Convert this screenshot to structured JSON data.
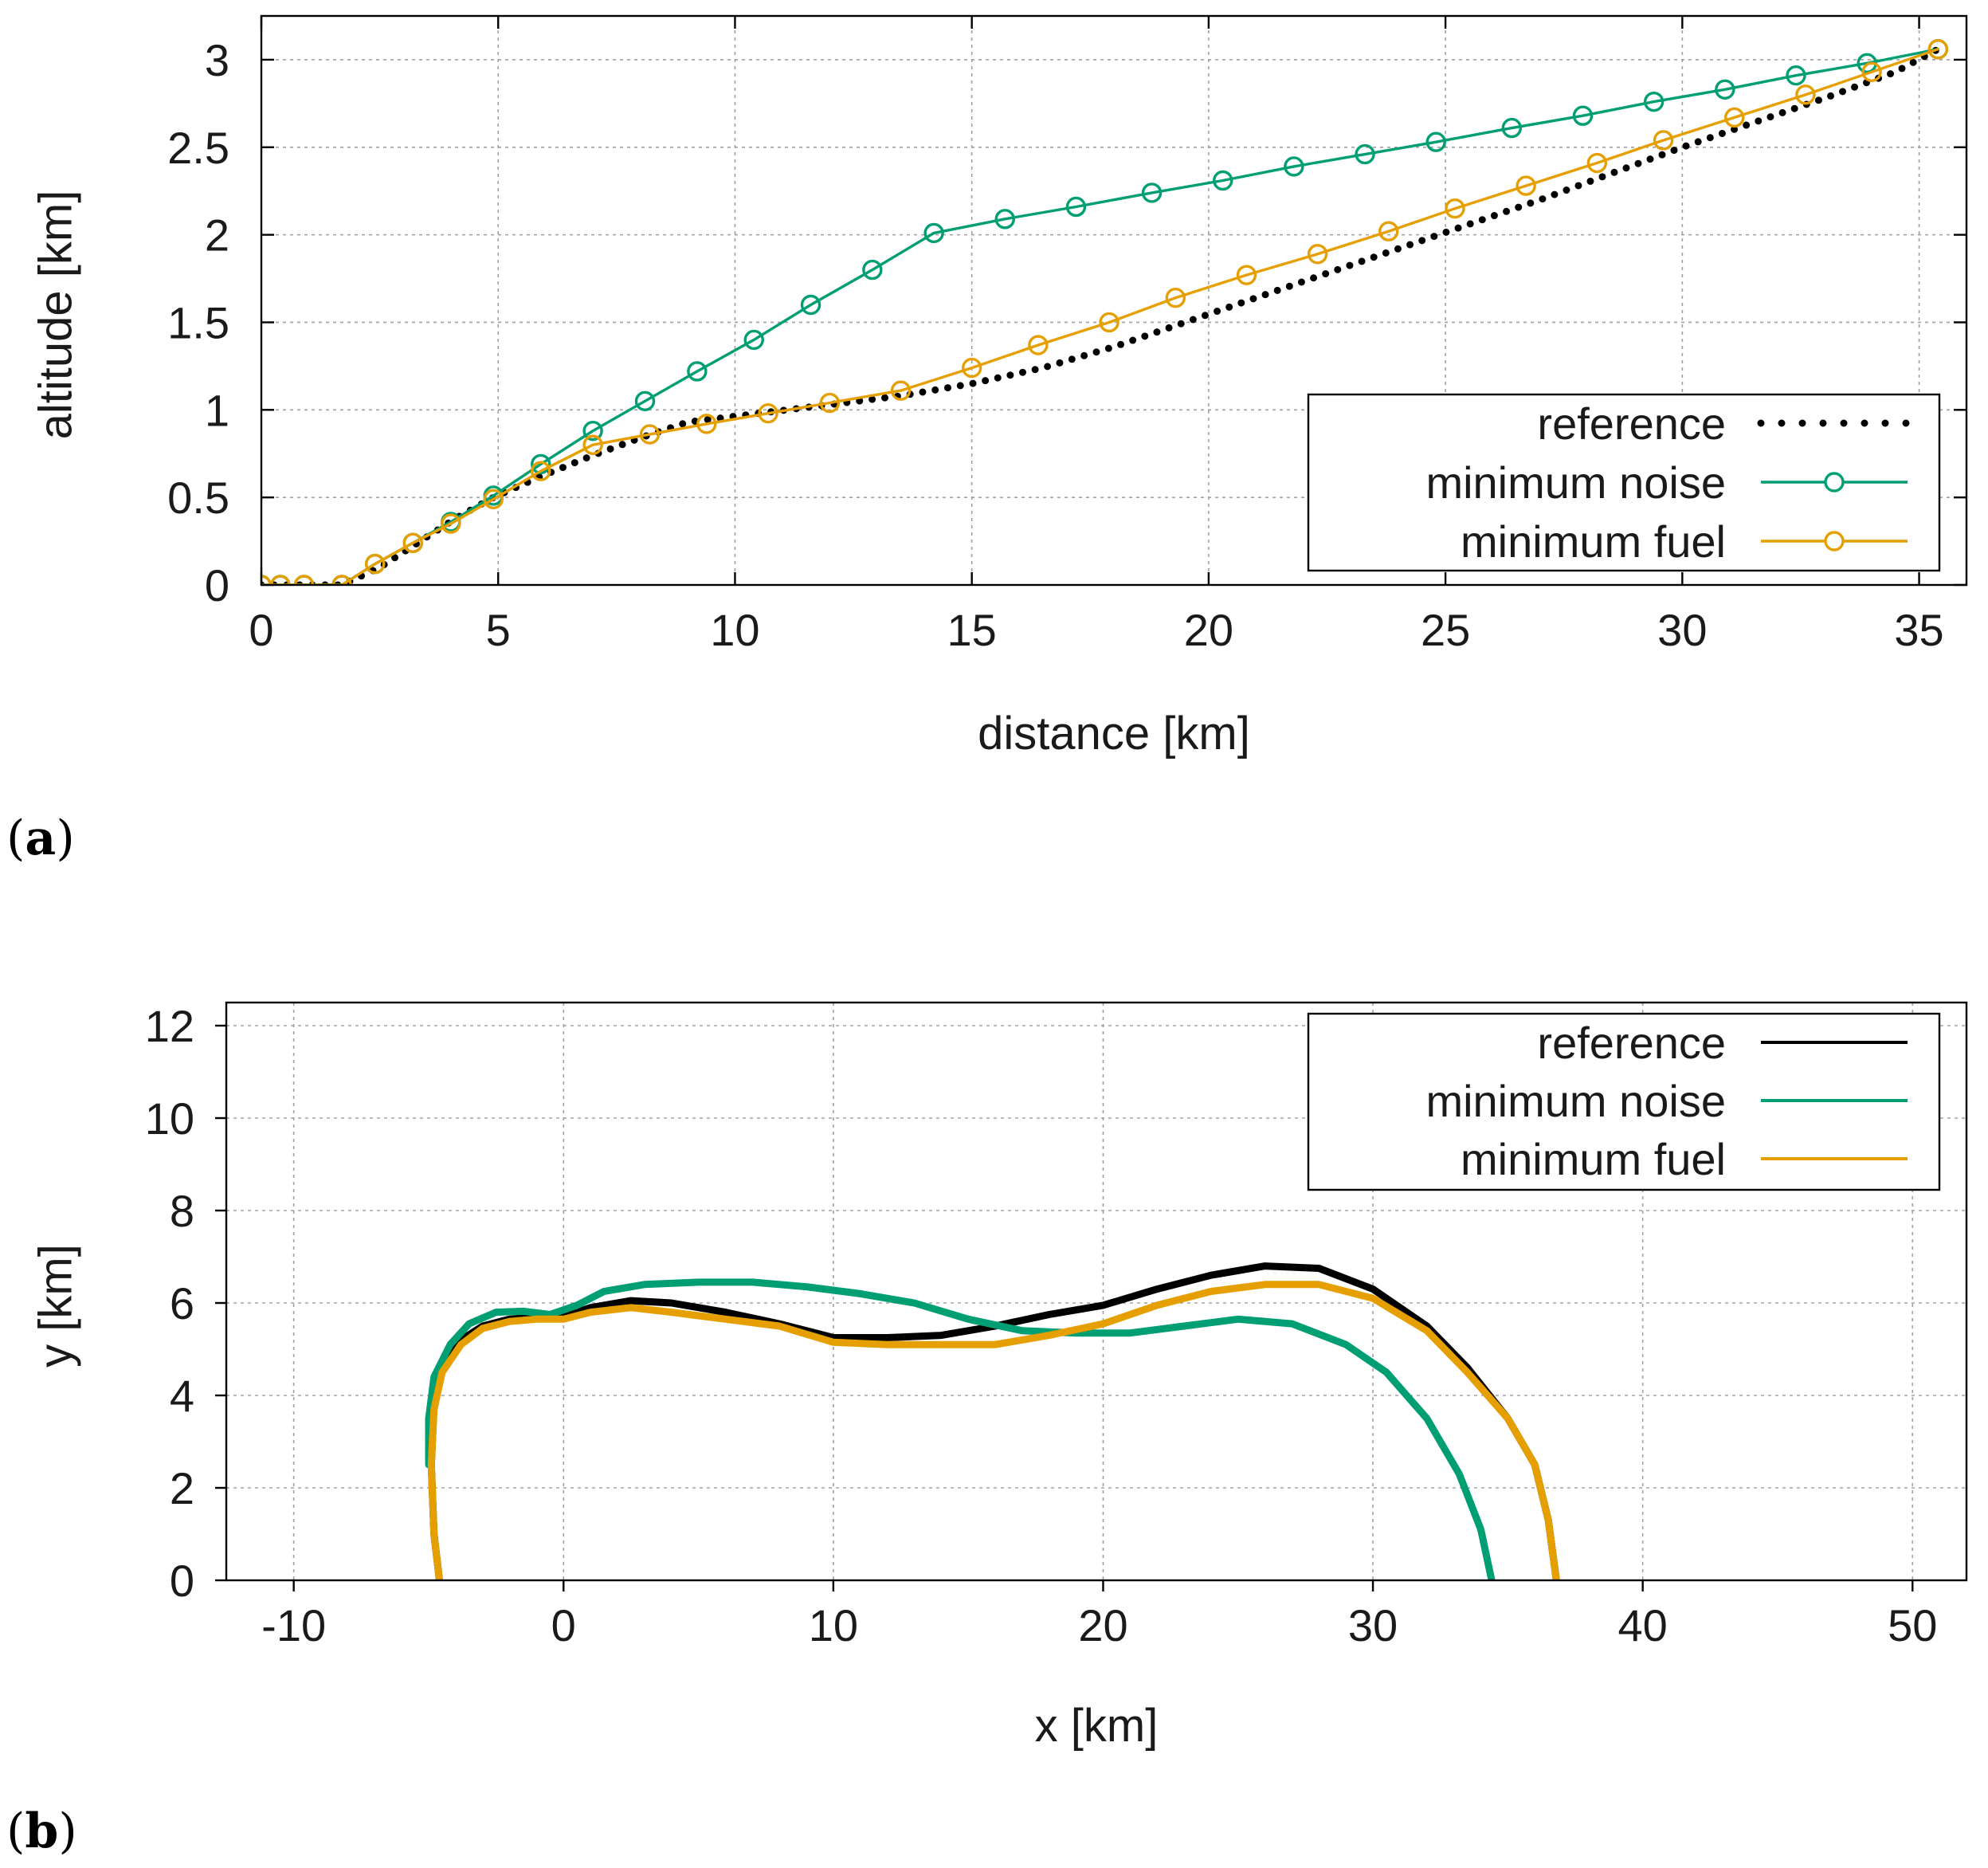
{
  "colors": {
    "reference": "#000000",
    "minimum_noise": "#009e73",
    "minimum_fuel": "#e69f00"
  },
  "chart_data": [
    {
      "id": "a",
      "type": "line",
      "panel_label": "a",
      "title": "",
      "xlabel": "distance [km]",
      "ylabel": "altitude [km]",
      "xlim": [
        0,
        36
      ],
      "ylim": [
        0,
        3.25
      ],
      "xticks": [
        0,
        5,
        10,
        15,
        20,
        25,
        30,
        35
      ],
      "yticks": [
        0,
        0.5,
        1,
        1.5,
        2,
        2.5,
        3
      ],
      "xtick_labels": [
        "0",
        "5",
        "10",
        "15",
        "20",
        "25",
        "30",
        "35"
      ],
      "ytick_labels": [
        "0",
        "0.5",
        "1",
        "1.5",
        "2",
        "2.5",
        "3"
      ],
      "grid": true,
      "legend_position": "bottom-right",
      "series": [
        {
          "name": "reference",
          "style": "dotted",
          "color_key": "reference",
          "x": [
            0,
            1.7,
            2.5,
            3.3,
            4.1,
            4.9,
            5.9,
            7.0,
            8.0,
            9.0,
            10.5,
            12.0,
            13.5,
            15.0,
            16.5,
            18.0,
            19.5,
            21.0,
            22.5,
            24.0,
            25.5,
            27.0,
            28.5,
            30.0,
            31.5,
            33.0,
            34.5,
            35.4
          ],
          "y": [
            0,
            0,
            0.1,
            0.24,
            0.38,
            0.5,
            0.62,
            0.74,
            0.84,
            0.93,
            0.98,
            1.03,
            1.08,
            1.15,
            1.24,
            1.36,
            1.5,
            1.64,
            1.78,
            1.92,
            2.06,
            2.2,
            2.35,
            2.5,
            2.64,
            2.78,
            2.93,
            3.06
          ]
        },
        {
          "name": "minimum noise",
          "style": "line-circle",
          "color_key": "minimum_noise",
          "x": [
            0,
            0.4,
            0.9,
            1.7,
            2.4,
            3.2,
            4.0,
            4.9,
            5.9,
            7.0,
            8.1,
            9.2,
            10.4,
            11.6,
            12.9,
            14.2,
            15.7,
            17.2,
            18.8,
            20.3,
            21.8,
            23.3,
            24.8,
            26.4,
            27.9,
            29.4,
            30.9,
            32.4,
            33.9,
            35.4
          ],
          "y": [
            0,
            0,
            0,
            0,
            0.12,
            0.24,
            0.36,
            0.51,
            0.69,
            0.88,
            1.05,
            1.22,
            1.4,
            1.6,
            1.8,
            2.01,
            2.09,
            2.16,
            2.24,
            2.31,
            2.39,
            2.46,
            2.53,
            2.61,
            2.68,
            2.76,
            2.83,
            2.91,
            2.98,
            3.06
          ]
        },
        {
          "name": "minimum fuel",
          "style": "line-circle",
          "color_key": "minimum_fuel",
          "x": [
            0,
            0.4,
            0.9,
            1.7,
            2.4,
            3.2,
            4.0,
            4.9,
            5.9,
            7.0,
            8.2,
            9.4,
            10.7,
            12.0,
            13.5,
            15.0,
            16.4,
            17.9,
            19.3,
            20.8,
            22.3,
            23.8,
            25.2,
            26.7,
            28.2,
            29.6,
            31.1,
            32.6,
            34.0,
            35.4
          ],
          "y": [
            0,
            0,
            0,
            0,
            0.12,
            0.24,
            0.35,
            0.49,
            0.65,
            0.8,
            0.86,
            0.92,
            0.98,
            1.04,
            1.11,
            1.24,
            1.37,
            1.5,
            1.64,
            1.77,
            1.89,
            2.02,
            2.15,
            2.28,
            2.41,
            2.54,
            2.67,
            2.8,
            2.93,
            3.06
          ]
        }
      ]
    },
    {
      "id": "b",
      "type": "line",
      "panel_label": "b",
      "title": "",
      "xlabel": "x [km]",
      "ylabel": "y [km]",
      "xlim": [
        -12.5,
        52
      ],
      "ylim": [
        0,
        12.5
      ],
      "xticks": [
        -10,
        0,
        10,
        20,
        30,
        40,
        50
      ],
      "yticks": [
        0,
        2,
        4,
        6,
        8,
        10,
        12
      ],
      "xtick_labels": [
        "-10",
        "0",
        "10",
        "20",
        "30",
        "40",
        "50"
      ],
      "ytick_labels": [
        "0",
        "2",
        "4",
        "6",
        "8",
        "10",
        "12"
      ],
      "grid": true,
      "legend_position": "top-right",
      "series": [
        {
          "name": "reference",
          "style": "line",
          "color_key": "reference",
          "x": [
            -4.6,
            -4.8,
            -4.9,
            -4.8,
            -4.5,
            -3.8,
            -3.0,
            -2.0,
            -1.0,
            0,
            1.0,
            2.5,
            4.0,
            6.0,
            8.0,
            10.0,
            12.0,
            14.0,
            16.0,
            18.0,
            20.0,
            22.0,
            24.0,
            26.0,
            28.0,
            30.0,
            32.0,
            33.5,
            35.0,
            36.0,
            36.5,
            36.8
          ],
          "y": [
            0,
            1.0,
            2.5,
            3.8,
            4.6,
            5.2,
            5.5,
            5.65,
            5.7,
            5.7,
            5.9,
            6.05,
            6.0,
            5.8,
            5.55,
            5.25,
            5.25,
            5.3,
            5.5,
            5.75,
            5.95,
            6.3,
            6.6,
            6.8,
            6.75,
            6.3,
            5.5,
            4.6,
            3.5,
            2.5,
            1.3,
            0
          ]
        },
        {
          "name": "minimum noise",
          "style": "line",
          "color_key": "minimum_noise",
          "x": [
            -5.0,
            -5.0,
            -4.8,
            -4.2,
            -3.5,
            -2.5,
            -1.5,
            -0.5,
            0.5,
            1.5,
            3.0,
            5.0,
            7.0,
            9.0,
            11.0,
            13.0,
            15.0,
            17.0,
            19.0,
            21.0,
            23.0,
            25.0,
            27.0,
            29.0,
            30.5,
            32.0,
            33.2,
            34.0,
            34.4
          ],
          "y": [
            2.5,
            3.5,
            4.4,
            5.1,
            5.55,
            5.8,
            5.82,
            5.75,
            5.95,
            6.25,
            6.4,
            6.45,
            6.45,
            6.35,
            6.2,
            6.0,
            5.65,
            5.4,
            5.35,
            5.35,
            5.5,
            5.65,
            5.55,
            5.1,
            4.5,
            3.5,
            2.3,
            1.1,
            0
          ]
        },
        {
          "name": "minimum fuel",
          "style": "line",
          "color_key": "minimum_fuel",
          "x": [
            -4.6,
            -4.8,
            -4.9,
            -4.8,
            -4.5,
            -3.8,
            -3.0,
            -2.0,
            -1.0,
            0,
            1.0,
            2.5,
            4.0,
            6.0,
            8.0,
            10.0,
            12.0,
            14.0,
            16.0,
            18.0,
            20.0,
            22.0,
            24.0,
            26.0,
            28.0,
            30.0,
            32.0,
            33.5,
            35.0,
            36.0,
            36.5,
            36.8
          ],
          "y": [
            0,
            1.0,
            2.5,
            3.7,
            4.5,
            5.1,
            5.45,
            5.6,
            5.65,
            5.65,
            5.8,
            5.9,
            5.8,
            5.65,
            5.5,
            5.15,
            5.1,
            5.1,
            5.1,
            5.3,
            5.55,
            5.95,
            6.25,
            6.4,
            6.4,
            6.1,
            5.4,
            4.5,
            3.5,
            2.5,
            1.3,
            0
          ]
        }
      ]
    }
  ]
}
